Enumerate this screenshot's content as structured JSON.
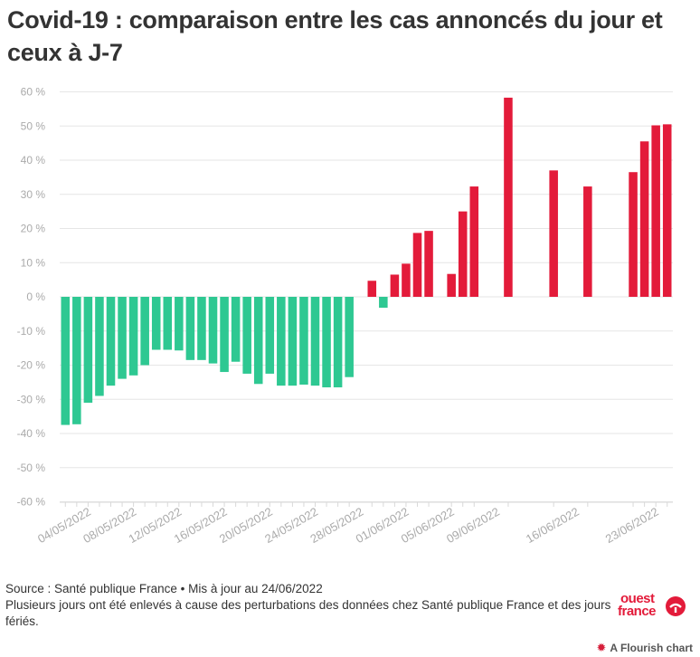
{
  "title": "Covid-19 : comparaison entre les cas annoncés du jour et ceux à J-7",
  "footer": {
    "source": "Source : Santé publique France • Mis à jour au 24/06/2022",
    "note": "Plusieurs jours ont été enlevés à cause des perturbations des données chez Santé publique France et des jours fériés."
  },
  "logo": {
    "line1": "ouest",
    "line2": "france"
  },
  "credit": "A Flourish chart",
  "colors": {
    "negative": "#2ec892",
    "positive": "#e31b3a",
    "grid": "#e6e6e6",
    "axis_text": "#aaaaaa"
  },
  "chart_data": {
    "type": "bar",
    "title": "Covid-19 : comparaison entre les cas annoncés du jour et ceux à J-7",
    "xlabel": "",
    "ylabel": "",
    "unit": "%",
    "ylim": [
      -60,
      60
    ],
    "y_ticks": [
      60,
      50,
      40,
      30,
      20,
      10,
      0,
      -10,
      -20,
      -30,
      -40,
      -50,
      -60
    ],
    "y_tick_labels": [
      "60 %",
      "50 %",
      "40 %",
      "30 %",
      "20 %",
      "10 %",
      "0 %",
      "-10 %",
      "-20 %",
      "-30 %",
      "-40 %",
      "-50 %",
      "-60 %"
    ],
    "x_tick_labels": [
      {
        "label": "04/05/2022",
        "at": "2022-05-04"
      },
      {
        "label": "08/05/2022",
        "at": "2022-05-08"
      },
      {
        "label": "12/05/2022",
        "at": "2022-05-12"
      },
      {
        "label": "16/05/2022",
        "at": "2022-05-16"
      },
      {
        "label": "20/05/2022",
        "at": "2022-05-20"
      },
      {
        "label": "24/05/2022",
        "at": "2022-05-24"
      },
      {
        "label": "28/05/2022",
        "at": "2022-05-28"
      },
      {
        "label": "01/06/2022",
        "at": "2022-06-01"
      },
      {
        "label": "05/06/2022",
        "at": "2022-06-05"
      },
      {
        "label": "09/06/2022",
        "at": "2022-06-09"
      },
      {
        "label": "16/06/2022",
        "at": "2022-06-16"
      },
      {
        "label": "23/06/2022",
        "at": "2022-06-23"
      }
    ],
    "x_start": "2022-05-02",
    "x_end": "2022-06-24",
    "grid": true,
    "points": [
      {
        "date": "2022-05-02",
        "value": -37.5
      },
      {
        "date": "2022-05-03",
        "value": -37.3
      },
      {
        "date": "2022-05-04",
        "value": -31
      },
      {
        "date": "2022-05-05",
        "value": -29
      },
      {
        "date": "2022-05-06",
        "value": -26
      },
      {
        "date": "2022-05-07",
        "value": -24
      },
      {
        "date": "2022-05-08",
        "value": -23
      },
      {
        "date": "2022-05-09",
        "value": -20
      },
      {
        "date": "2022-05-10",
        "value": -15.5
      },
      {
        "date": "2022-05-11",
        "value": -15.5
      },
      {
        "date": "2022-05-12",
        "value": -15.7
      },
      {
        "date": "2022-05-13",
        "value": -18.5
      },
      {
        "date": "2022-05-14",
        "value": -18.5
      },
      {
        "date": "2022-05-15",
        "value": -19.5
      },
      {
        "date": "2022-05-16",
        "value": -22
      },
      {
        "date": "2022-05-17",
        "value": -19
      },
      {
        "date": "2022-05-18",
        "value": -22.5
      },
      {
        "date": "2022-05-19",
        "value": -25.5
      },
      {
        "date": "2022-05-20",
        "value": -22.5
      },
      {
        "date": "2022-05-21",
        "value": -26
      },
      {
        "date": "2022-05-22",
        "value": -26
      },
      {
        "date": "2022-05-23",
        "value": -25.7
      },
      {
        "date": "2022-05-24",
        "value": -26
      },
      {
        "date": "2022-05-25",
        "value": -26.5
      },
      {
        "date": "2022-05-26",
        "value": -26.5
      },
      {
        "date": "2022-05-27",
        "value": -23.5
      },
      {
        "date": "2022-05-29",
        "value": 4.7
      },
      {
        "date": "2022-05-30",
        "value": -3.2
      },
      {
        "date": "2022-05-31",
        "value": 6.5
      },
      {
        "date": "2022-06-01",
        "value": 9.7
      },
      {
        "date": "2022-06-02",
        "value": 18.7
      },
      {
        "date": "2022-06-03",
        "value": 19.3
      },
      {
        "date": "2022-06-05",
        "value": 6.7
      },
      {
        "date": "2022-06-06",
        "value": 25
      },
      {
        "date": "2022-06-07",
        "value": 32.3
      },
      {
        "date": "2022-06-10",
        "value": 58.3
      },
      {
        "date": "2022-06-14",
        "value": 37
      },
      {
        "date": "2022-06-17",
        "value": 32.3
      },
      {
        "date": "2022-06-21",
        "value": 36.5
      },
      {
        "date": "2022-06-22",
        "value": 45.5
      },
      {
        "date": "2022-06-23",
        "value": 50.2
      },
      {
        "date": "2022-06-24",
        "value": 50.5
      }
    ]
  }
}
